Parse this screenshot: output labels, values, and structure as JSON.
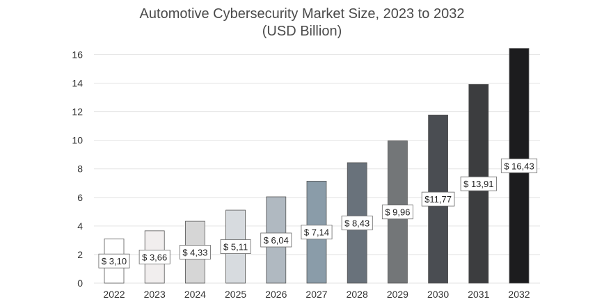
{
  "chart_data": {
    "type": "bar",
    "title": "Automotive Cybersecurity Market Size, 2023 to 2032",
    "subtitle": "(USD Billion)",
    "xlabel": "",
    "ylabel": "",
    "categories": [
      "2022",
      "2023",
      "2024",
      "2025",
      "2026",
      "2027",
      "2028",
      "2029",
      "2030",
      "2031",
      "2032"
    ],
    "values": [
      3.1,
      3.66,
      4.33,
      5.11,
      6.04,
      7.14,
      8.43,
      9.96,
      11.77,
      13.91,
      16.43
    ],
    "data_labels": [
      "$ 3,10",
      "$ 3,66",
      "$ 4,33",
      "$ 5,11",
      "$ 6,04",
      "$ 7,14",
      "$ 8,43",
      "$ 9,96",
      "$11,77",
      "$ 13,91",
      "$ 16,43"
    ],
    "y_ticks": [
      0,
      2,
      4,
      6,
      8,
      10,
      12,
      14,
      16
    ],
    "ylim": [
      0,
      16.8
    ],
    "grid": true,
    "legend": "none",
    "bar_colors": [
      "#ffffff",
      "#f1eeee",
      "#d6d6d6",
      "#d7dbdf",
      "#b0b9c1",
      "#8a9ca9",
      "#69727b",
      "#737678",
      "#4a4d52",
      "#3c3d3f",
      "#1c1c1e"
    ],
    "bar_outline": "#555555",
    "grid_color": "#e3e3e3"
  }
}
